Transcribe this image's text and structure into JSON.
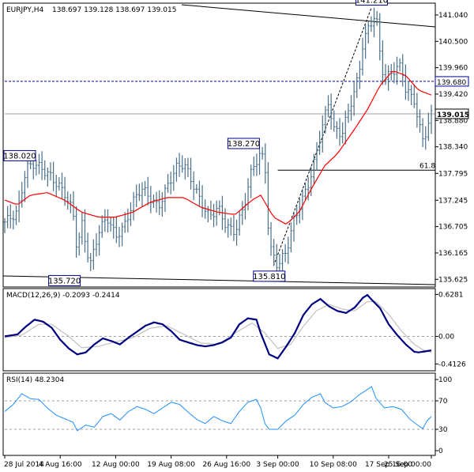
{
  "chart_data": {
    "type": "candlestick",
    "header": {
      "symbol_tf": "EURJPY,H4",
      "ohlc": "138.697 139.128 138.697 139.015"
    },
    "price_panel": {
      "ylim": [
        135.5,
        141.25
      ],
      "ticks": [
        "141.040",
        "140.500",
        "139.960",
        "139.420",
        "138.880",
        "138.340",
        "137.795",
        "137.245",
        "136.705",
        "136.165",
        "135.625"
      ],
      "tick_values": [
        141.04,
        140.5,
        139.96,
        139.42,
        138.88,
        138.34,
        137.795,
        137.245,
        136.705,
        136.165,
        135.625
      ],
      "current_price": "139.015",
      "current_value": 139.015,
      "resistance_line": "139.680",
      "resistance_value": 139.68,
      "fib_label": "61.8",
      "fib_value": 137.86,
      "annotations": [
        {
          "label": "138.020",
          "value": 138.02,
          "at": 0.03
        },
        {
          "label": "135.720",
          "value": 135.72,
          "at": 0.14
        },
        {
          "label": "138.270",
          "value": 138.27,
          "at": 0.56
        },
        {
          "label": "135.810",
          "value": 135.81,
          "at": 0.62
        },
        {
          "label": "141.210",
          "value": 141.21,
          "at": 0.86
        }
      ],
      "trendline_color": "#000000",
      "moving_average_color": "#ff0000",
      "bar_color": "#4a6f8a"
    },
    "close_path": [
      [
        0.0,
        136.8
      ],
      [
        0.03,
        137.0
      ],
      [
        0.05,
        137.9
      ],
      [
        0.07,
        138.0
      ],
      [
        0.1,
        137.8
      ],
      [
        0.12,
        137.6
      ],
      [
        0.14,
        137.4
      ],
      [
        0.16,
        137.0
      ],
      [
        0.17,
        136.2
      ],
      [
        0.18,
        136.8
      ],
      [
        0.2,
        135.9
      ],
      [
        0.22,
        136.6
      ],
      [
        0.24,
        136.9
      ],
      [
        0.26,
        136.5
      ],
      [
        0.28,
        136.7
      ],
      [
        0.3,
        137.2
      ],
      [
        0.32,
        137.5
      ],
      [
        0.34,
        137.3
      ],
      [
        0.36,
        137.1
      ],
      [
        0.38,
        137.5
      ],
      [
        0.4,
        137.9
      ],
      [
        0.42,
        138.0
      ],
      [
        0.44,
        137.6
      ],
      [
        0.46,
        137.2
      ],
      [
        0.48,
        136.9
      ],
      [
        0.5,
        137.1
      ],
      [
        0.52,
        136.7
      ],
      [
        0.54,
        136.6
      ],
      [
        0.56,
        137.1
      ],
      [
        0.58,
        137.9
      ],
      [
        0.6,
        138.2
      ],
      [
        0.61,
        138.0
      ],
      [
        0.62,
        136.3
      ],
      [
        0.64,
        135.9
      ],
      [
        0.66,
        136.2
      ],
      [
        0.68,
        136.9
      ],
      [
        0.7,
        137.3
      ],
      [
        0.72,
        137.8
      ],
      [
        0.74,
        138.6
      ],
      [
        0.76,
        139.3
      ],
      [
        0.77,
        138.7
      ],
      [
        0.79,
        138.6
      ],
      [
        0.81,
        139.2
      ],
      [
        0.83,
        139.8
      ],
      [
        0.84,
        140.5
      ],
      [
        0.86,
        140.9
      ],
      [
        0.87,
        141.1
      ],
      [
        0.88,
        140.2
      ],
      [
        0.89,
        139.7
      ],
      [
        0.91,
        139.9
      ],
      [
        0.93,
        140.0
      ],
      [
        0.94,
        139.5
      ],
      [
        0.96,
        139.3
      ],
      [
        0.97,
        138.8
      ],
      [
        0.98,
        138.5
      ],
      [
        0.99,
        138.7
      ],
      [
        1.0,
        139.0
      ]
    ],
    "ma_path": [
      [
        0.0,
        137.25
      ],
      [
        0.03,
        137.15
      ],
      [
        0.06,
        137.35
      ],
      [
        0.1,
        137.4
      ],
      [
        0.14,
        137.25
      ],
      [
        0.18,
        137.0
      ],
      [
        0.22,
        136.9
      ],
      [
        0.26,
        136.9
      ],
      [
        0.3,
        137.0
      ],
      [
        0.34,
        137.2
      ],
      [
        0.38,
        137.3
      ],
      [
        0.42,
        137.3
      ],
      [
        0.46,
        137.1
      ],
      [
        0.5,
        137.0
      ],
      [
        0.54,
        136.95
      ],
      [
        0.58,
        137.25
      ],
      [
        0.6,
        137.35
      ],
      [
        0.63,
        136.9
      ],
      [
        0.66,
        136.75
      ],
      [
        0.69,
        137.0
      ],
      [
        0.72,
        137.5
      ],
      [
        0.75,
        137.95
      ],
      [
        0.78,
        138.2
      ],
      [
        0.82,
        138.7
      ],
      [
        0.85,
        139.1
      ],
      [
        0.88,
        139.6
      ],
      [
        0.91,
        139.9
      ],
      [
        0.94,
        139.8
      ],
      [
        0.97,
        139.5
      ],
      [
        1.0,
        139.4
      ]
    ],
    "macd_panel": {
      "title": "MACD(12,26,9) -0.2093 -0.2414",
      "ticks": [
        "0.6281",
        "0.00",
        "-0.4126"
      ],
      "tick_values": [
        0.6281,
        0.0,
        -0.4126
      ],
      "ylim": [
        -0.48,
        0.68
      ],
      "macd_color": "#000080",
      "signal_color": "#c0c0c0",
      "macd_path": [
        [
          0.0,
          0.0
        ],
        [
          0.03,
          0.03
        ],
        [
          0.05,
          0.15
        ],
        [
          0.07,
          0.25
        ],
        [
          0.09,
          0.22
        ],
        [
          0.11,
          0.13
        ],
        [
          0.13,
          -0.05
        ],
        [
          0.15,
          -0.18
        ],
        [
          0.17,
          -0.27
        ],
        [
          0.19,
          -0.24
        ],
        [
          0.21,
          -0.12
        ],
        [
          0.23,
          -0.03
        ],
        [
          0.25,
          -0.07
        ],
        [
          0.27,
          -0.12
        ],
        [
          0.29,
          -0.02
        ],
        [
          0.31,
          0.07
        ],
        [
          0.33,
          0.16
        ],
        [
          0.35,
          0.21
        ],
        [
          0.37,
          0.18
        ],
        [
          0.39,
          0.08
        ],
        [
          0.41,
          -0.05
        ],
        [
          0.43,
          -0.09
        ],
        [
          0.45,
          -0.13
        ],
        [
          0.47,
          -0.15
        ],
        [
          0.49,
          -0.13
        ],
        [
          0.51,
          -0.09
        ],
        [
          0.53,
          -0.02
        ],
        [
          0.55,
          0.18
        ],
        [
          0.57,
          0.27
        ],
        [
          0.59,
          0.25
        ],
        [
          0.6,
          0.05
        ],
        [
          0.62,
          -0.27
        ],
        [
          0.64,
          -0.33
        ],
        [
          0.66,
          -0.15
        ],
        [
          0.68,
          0.05
        ],
        [
          0.7,
          0.32
        ],
        [
          0.72,
          0.48
        ],
        [
          0.74,
          0.56
        ],
        [
          0.76,
          0.45
        ],
        [
          0.78,
          0.38
        ],
        [
          0.8,
          0.35
        ],
        [
          0.82,
          0.43
        ],
        [
          0.84,
          0.58
        ],
        [
          0.85,
          0.62
        ],
        [
          0.86,
          0.55
        ],
        [
          0.88,
          0.42
        ],
        [
          0.9,
          0.18
        ],
        [
          0.92,
          0.02
        ],
        [
          0.94,
          -0.12
        ],
        [
          0.96,
          -0.23
        ],
        [
          0.97,
          -0.24
        ],
        [
          0.99,
          -0.22
        ],
        [
          1.0,
          -0.21
        ]
      ],
      "signal_path": [
        [
          0.0,
          -0.02
        ],
        [
          0.04,
          0.02
        ],
        [
          0.08,
          0.18
        ],
        [
          0.11,
          0.18
        ],
        [
          0.15,
          0.0
        ],
        [
          0.18,
          -0.17
        ],
        [
          0.22,
          -0.15
        ],
        [
          0.26,
          -0.08
        ],
        [
          0.3,
          -0.02
        ],
        [
          0.34,
          0.12
        ],
        [
          0.38,
          0.16
        ],
        [
          0.42,
          0.03
        ],
        [
          0.46,
          -0.1
        ],
        [
          0.5,
          -0.12
        ],
        [
          0.54,
          0.05
        ],
        [
          0.58,
          0.2
        ],
        [
          0.61,
          0.05
        ],
        [
          0.64,
          -0.18
        ],
        [
          0.67,
          -0.12
        ],
        [
          0.7,
          0.15
        ],
        [
          0.73,
          0.38
        ],
        [
          0.76,
          0.48
        ],
        [
          0.79,
          0.41
        ],
        [
          0.82,
          0.38
        ],
        [
          0.85,
          0.52
        ],
        [
          0.87,
          0.52
        ],
        [
          0.9,
          0.33
        ],
        [
          0.93,
          0.08
        ],
        [
          0.96,
          -0.12
        ],
        [
          0.98,
          -0.2
        ],
        [
          1.0,
          -0.24
        ]
      ]
    },
    "rsi_panel": {
      "title": "RSI(14) 48.2304",
      "ticks": [
        "100",
        "70",
        "30",
        "0"
      ],
      "tick_values": [
        100,
        70,
        30,
        0
      ],
      "line_color": "#1e90ff",
      "rsi_path": [
        [
          0.0,
          55
        ],
        [
          0.02,
          65
        ],
        [
          0.04,
          80
        ],
        [
          0.06,
          73
        ],
        [
          0.08,
          72
        ],
        [
          0.1,
          60
        ],
        [
          0.12,
          50
        ],
        [
          0.14,
          45
        ],
        [
          0.16,
          40
        ],
        [
          0.17,
          28
        ],
        [
          0.19,
          36
        ],
        [
          0.21,
          33
        ],
        [
          0.23,
          48
        ],
        [
          0.25,
          52
        ],
        [
          0.27,
          43
        ],
        [
          0.29,
          55
        ],
        [
          0.31,
          62
        ],
        [
          0.33,
          58
        ],
        [
          0.35,
          52
        ],
        [
          0.37,
          60
        ],
        [
          0.39,
          68
        ],
        [
          0.41,
          65
        ],
        [
          0.43,
          54
        ],
        [
          0.45,
          44
        ],
        [
          0.47,
          38
        ],
        [
          0.49,
          48
        ],
        [
          0.51,
          42
        ],
        [
          0.53,
          38
        ],
        [
          0.55,
          55
        ],
        [
          0.57,
          68
        ],
        [
          0.59,
          72
        ],
        [
          0.6,
          60
        ],
        [
          0.61,
          38
        ],
        [
          0.62,
          30
        ],
        [
          0.64,
          30
        ],
        [
          0.66,
          42
        ],
        [
          0.68,
          50
        ],
        [
          0.7,
          65
        ],
        [
          0.72,
          75
        ],
        [
          0.74,
          80
        ],
        [
          0.75,
          68
        ],
        [
          0.77,
          60
        ],
        [
          0.79,
          62
        ],
        [
          0.81,
          68
        ],
        [
          0.83,
          78
        ],
        [
          0.84,
          82
        ],
        [
          0.85,
          86
        ],
        [
          0.86,
          90
        ],
        [
          0.87,
          74
        ],
        [
          0.89,
          60
        ],
        [
          0.91,
          62
        ],
        [
          0.93,
          58
        ],
        [
          0.95,
          44
        ],
        [
          0.97,
          35
        ],
        [
          0.98,
          31
        ],
        [
          0.99,
          42
        ],
        [
          1.0,
          48
        ]
      ]
    },
    "x_axis": {
      "ticks": [
        "28 Jul 2014",
        "4 Aug 16:00",
        "12 Aug 00:00",
        "19 Aug 08:00",
        "26 Aug 16:00",
        "3 Sep 00:00",
        "10 Sep 08:00",
        "17 Sep 16:00",
        "25 Sep 00:00"
      ],
      "tick_positions": [
        0.0,
        0.13,
        0.26,
        0.39,
        0.52,
        0.64,
        0.77,
        0.9,
        1.0
      ]
    },
    "grid": true
  }
}
